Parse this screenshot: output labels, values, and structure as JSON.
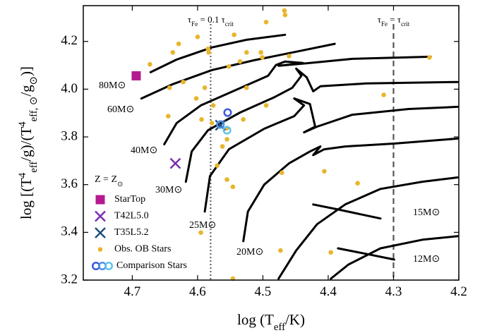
{
  "chart_data": {
    "type": "scatter",
    "xlabel_parts": [
      {
        "text": "log ("
      },
      {
        "text": "T"
      },
      {
        "text": "eff",
        "shift": "sub"
      },
      {
        "text": "/K)"
      }
    ],
    "ylabel_parts": [
      {
        "text": "log [("
      },
      {
        "text": "T"
      },
      {
        "text": "4",
        "shift": "sup"
      },
      {
        "text": "eff",
        "shift": "sub"
      },
      {
        "text": "/g)/("
      },
      {
        "text": "T"
      },
      {
        "text": "4",
        "shift": "sup"
      },
      {
        "text": "eff, ⊙",
        "shift": "sub"
      },
      {
        "text": "/g"
      },
      {
        "text": "⊙",
        "shift": "sub"
      },
      {
        "text": ")]"
      }
    ],
    "xlim": [
      4.775,
      4.2
    ],
    "ylim": [
      3.2,
      4.35
    ],
    "xticks": [
      4.7,
      4.6,
      4.5,
      4.4,
      4.3,
      4.2
    ],
    "yticks": [
      3.2,
      3.4,
      3.6,
      3.8,
      {
        "value": 4,
        "label": "4.0"
      },
      4.2
    ],
    "legend": "lower left",
    "legend_title_parts": [
      {
        "text": "Z = Z"
      },
      {
        "text": "⊙",
        "shift": "sub"
      }
    ],
    "vlines": [
      {
        "x": 4.58,
        "style": "dotted",
        "color": "#666666",
        "parts": [
          {
            "text": "τ"
          },
          {
            "text": "Fe",
            "shift": "sub"
          },
          {
            "text": " = 0.1 τ"
          },
          {
            "text": "crit",
            "shift": "sub"
          }
        ]
      },
      {
        "x": 4.3,
        "style": "dashed",
        "color": "#555555",
        "parts": [
          {
            "text": "τ"
          },
          {
            "text": "Fe",
            "shift": "sub"
          },
          {
            "text": " = τ"
          },
          {
            "text": "crit",
            "shift": "sub"
          }
        ]
      }
    ],
    "tracks": [
      {
        "name": "80M⊙",
        "color": "#000000",
        "x": [
          4.672,
          4.632,
          4.578,
          4.525,
          4.466
        ],
        "y": [
          4.071,
          4.124,
          4.175,
          4.207,
          4.228
        ]
      },
      {
        "name": "60M⊙",
        "color": "#000000",
        "x": [
          4.686,
          4.638,
          4.578,
          4.514,
          4.449,
          4.39
        ],
        "y": [
          3.961,
          4.021,
          4.08,
          4.121,
          4.157,
          4.19
        ]
      },
      {
        "name": "40M⊙",
        "color": "#000000",
        "x": [
          4.651,
          4.632,
          4.595,
          4.541,
          4.492,
          4.48,
          4.466,
          4.439,
          4.476,
          4.428,
          4.363,
          4.243
        ],
        "y": [
          3.769,
          3.858,
          3.932,
          3.997,
          4.056,
          4.101,
          4.116,
          4.11,
          4.098,
          4.11,
          4.127,
          4.136
        ]
      },
      {
        "name": "30M⊙",
        "color": "#000000",
        "x": [
          4.618,
          4.609,
          4.584,
          4.535,
          4.482,
          4.455,
          4.441,
          4.449,
          4.433,
          4.423,
          4.412,
          4.342,
          4.202
        ],
        "y": [
          3.612,
          3.739,
          3.828,
          3.902,
          3.967,
          4.006,
          4.056,
          4.086,
          4.05,
          3.991,
          4.012,
          4.024,
          4.03
        ]
      },
      {
        "name": "25M⊙",
        "color": "#000000",
        "x": [
          4.589,
          4.581,
          4.552,
          4.498,
          4.452,
          4.437,
          4.452,
          4.428,
          4.42,
          4.437,
          4.417,
          4.363,
          4.277,
          4.202
        ],
        "y": [
          3.487,
          3.636,
          3.748,
          3.834,
          3.887,
          3.932,
          3.961,
          3.938,
          3.843,
          3.819,
          3.843,
          3.893,
          3.917,
          3.926
        ]
      },
      {
        "name": "20M⊙",
        "color": "#000000",
        "x": [
          4.53,
          4.523,
          4.498,
          4.46,
          4.428,
          4.412,
          4.423,
          4.406,
          4.374,
          4.299,
          4.202
        ],
        "y": [
          3.363,
          3.487,
          3.6,
          3.689,
          3.739,
          3.76,
          3.724,
          3.748,
          3.76,
          3.772,
          3.793
        ]
      },
      {
        "name": "15M⊙",
        "color": "#000000",
        "x": [
          4.476,
          4.449,
          4.417,
          4.374,
          4.32,
          4.256,
          4.202,
          null,
          4.423,
          4.385,
          4.32
        ],
        "y": [
          3.206,
          3.324,
          3.434,
          3.517,
          3.582,
          3.612,
          3.63,
          null,
          3.517,
          3.496,
          3.458
        ]
      },
      {
        "name": "12M⊙",
        "color": "#000000",
        "x": [
          4.396,
          4.369,
          4.32,
          4.256,
          4.202,
          null,
          4.385,
          4.342,
          4.299
        ],
        "y": [
          3.206,
          3.265,
          3.333,
          3.369,
          3.384,
          null,
          3.333,
          3.31,
          3.286
        ]
      }
    ],
    "series": [
      {
        "name": "Obs. OB Stars",
        "marker": "dot",
        "color": "#e8b62c",
        "x": [
          4.467,
          4.466,
          4.495,
          4.544,
          4.584,
          4.583,
          4.629,
          4.6,
          4.673,
          4.638,
          4.525,
          4.503,
          4.552,
          4.535,
          4.501,
          4.46,
          4.622,
          4.589,
          4.576,
          4.602,
          4.643,
          4.525,
          4.495,
          4.53,
          4.555,
          4.578,
          4.594,
          4.562,
          4.555,
          4.546,
          4.57,
          4.555,
          4.595,
          4.645,
          4.245,
          4.471,
          4.406,
          4.355,
          4.473,
          4.396,
          4.315,
          4.546
        ],
        "y": [
          4.329,
          4.311,
          4.281,
          4.228,
          4.169,
          4.154,
          4.19,
          4.219,
          4.104,
          4.154,
          4.154,
          4.154,
          4.095,
          4.116,
          4.133,
          4.139,
          4.03,
          4.006,
          3.932,
          3.961,
          4.006,
          4.006,
          3.932,
          3.873,
          3.837,
          3.858,
          3.873,
          3.76,
          3.79,
          3.591,
          3.68,
          3.621,
          3.399,
          3.887,
          4.133,
          3.65,
          3.656,
          3.606,
          3.324,
          3.316,
          3.976,
          3.206
        ]
      },
      {
        "name": "StarTop",
        "marker": "square",
        "color": "#b5198f",
        "x": [
          4.694
        ],
        "y": [
          4.056
        ]
      },
      {
        "name": "T42L5.0",
        "marker": "x",
        "color": "#7b2fb0",
        "x": [
          4.634
        ],
        "y": [
          3.689
        ]
      },
      {
        "name": "T35L5.2",
        "marker": "x",
        "color": "#1d4f7c",
        "x": [
          4.565
        ],
        "y": [
          3.849
        ]
      },
      {
        "name": "Comparison Stars",
        "marker": "circle",
        "colors": [
          "#3a5bd9",
          "#4f8fe6",
          "#5ec4ea"
        ],
        "x": [
          4.554,
          4.565,
          4.555
        ],
        "y": [
          3.902,
          3.852,
          3.828
        ]
      }
    ]
  }
}
